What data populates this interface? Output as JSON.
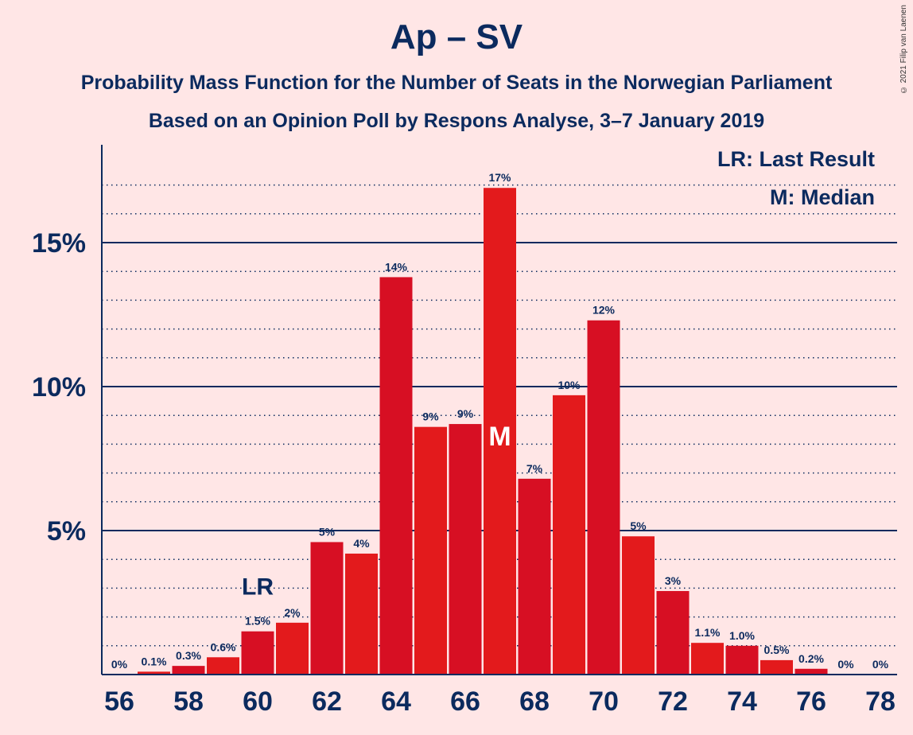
{
  "title": "Ap – SV",
  "subtitle1": "Probability Mass Function for the Number of Seats in the Norwegian Parliament",
  "subtitle2": "Based on an Opinion Poll by Respons Analyse, 3–7 January 2019",
  "copyright": "© 2021 Filip van Laenen",
  "legend": {
    "lr": "LR: Last Result",
    "m": "M: Median"
  },
  "colors": {
    "bar": "#d70f23",
    "bar_alt": "#e31a1c",
    "axis": "#0b2a5e",
    "background": "#ffe6e6"
  },
  "chart_data": {
    "type": "bar",
    "x": [
      56,
      57,
      58,
      59,
      60,
      61,
      62,
      63,
      64,
      65,
      66,
      67,
      68,
      69,
      70,
      71,
      72,
      73,
      74,
      75,
      76,
      77,
      78
    ],
    "values": [
      0,
      0.1,
      0.3,
      0.6,
      1.5,
      1.8,
      4.6,
      4.2,
      13.8,
      8.6,
      8.7,
      16.9,
      6.8,
      9.7,
      12.3,
      4.8,
      2.9,
      1.1,
      1.0,
      0.5,
      0.2,
      0,
      0
    ],
    "labels": [
      "0%",
      "0.1%",
      "0.3%",
      "0.6%",
      "1.5%",
      "2%",
      "5%",
      "4%",
      "14%",
      "9%",
      "9%",
      "17%",
      "7%",
      "10%",
      "12%",
      "5%",
      "3%",
      "1.1%",
      "1.0%",
      "0.5%",
      "0.2%",
      "0%",
      "0%"
    ],
    "xticks": [
      56,
      58,
      60,
      62,
      64,
      66,
      68,
      70,
      72,
      74,
      76,
      78
    ],
    "yticks": [
      5,
      10,
      15
    ],
    "ytick_labels": [
      "5%",
      "10%",
      "15%"
    ],
    "ylim": [
      0,
      18
    ],
    "minor_grid_step": 1,
    "last_result": 60,
    "last_result_label": "LR",
    "median": 67,
    "median_label": "M",
    "legend_position": "top-right"
  }
}
